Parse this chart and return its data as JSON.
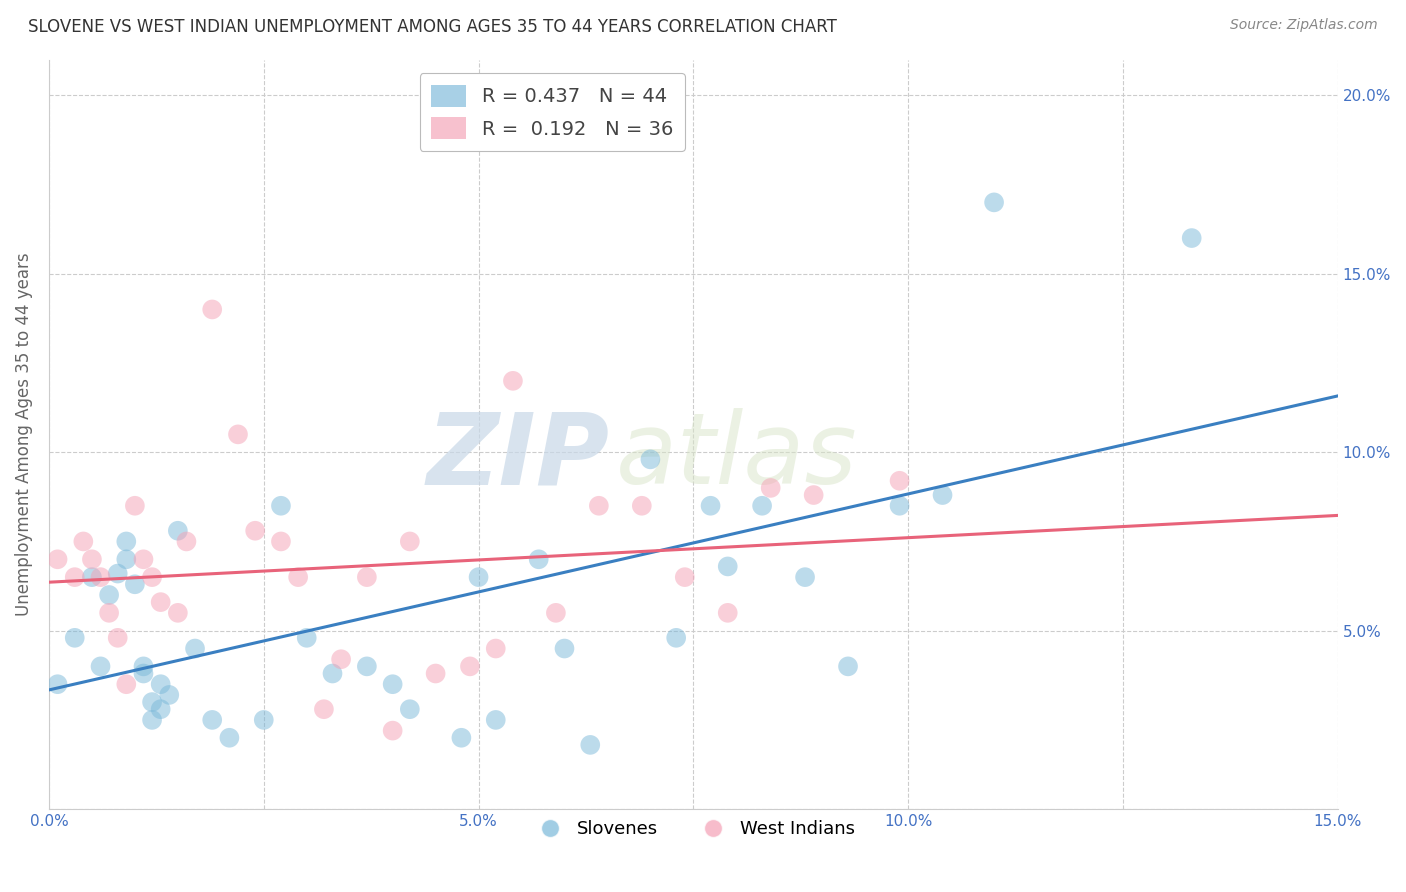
{
  "title": "SLOVENE VS WEST INDIAN UNEMPLOYMENT AMONG AGES 35 TO 44 YEARS CORRELATION CHART",
  "source": "Source: ZipAtlas.com",
  "ylabel": "Unemployment Among Ages 35 to 44 years",
  "xlim": [
    0.0,
    0.15
  ],
  "ylim": [
    0.0,
    0.21
  ],
  "xticks": [
    0.0,
    0.025,
    0.05,
    0.075,
    0.1,
    0.125,
    0.15
  ],
  "xtick_labels": [
    "0.0%",
    "",
    "5.0%",
    "",
    "10.0%",
    "",
    "15.0%"
  ],
  "yticks": [
    0.0,
    0.05,
    0.1,
    0.15,
    0.2
  ],
  "ytick_labels_right": [
    "",
    "5.0%",
    "10.0%",
    "15.0%",
    "20.0%"
  ],
  "slovene_color": "#7ab8d9",
  "west_indian_color": "#f4a0b5",
  "slovene_line_color": "#3a7fc1",
  "west_indian_line_color": "#e8637a",
  "R_slovene": 0.437,
  "N_slovene": 44,
  "R_west_indian": 0.192,
  "N_west_indian": 36,
  "background_color": "#ffffff",
  "grid_color": "#cccccc",
  "slovene_x": [
    0.001,
    0.003,
    0.005,
    0.006,
    0.007,
    0.008,
    0.009,
    0.009,
    0.01,
    0.011,
    0.011,
    0.012,
    0.012,
    0.013,
    0.013,
    0.014,
    0.015,
    0.017,
    0.019,
    0.021,
    0.025,
    0.027,
    0.03,
    0.033,
    0.037,
    0.04,
    0.042,
    0.048,
    0.05,
    0.052,
    0.057,
    0.06,
    0.063,
    0.07,
    0.073,
    0.077,
    0.079,
    0.083,
    0.088,
    0.093,
    0.099,
    0.104,
    0.11,
    0.133
  ],
  "slovene_y": [
    0.035,
    0.048,
    0.065,
    0.04,
    0.06,
    0.066,
    0.07,
    0.075,
    0.063,
    0.04,
    0.038,
    0.03,
    0.025,
    0.028,
    0.035,
    0.032,
    0.078,
    0.045,
    0.025,
    0.02,
    0.025,
    0.085,
    0.048,
    0.038,
    0.04,
    0.035,
    0.028,
    0.02,
    0.065,
    0.025,
    0.07,
    0.045,
    0.018,
    0.098,
    0.048,
    0.085,
    0.068,
    0.085,
    0.065,
    0.04,
    0.085,
    0.088,
    0.17,
    0.16
  ],
  "west_indian_x": [
    0.001,
    0.003,
    0.004,
    0.005,
    0.006,
    0.007,
    0.008,
    0.009,
    0.01,
    0.011,
    0.012,
    0.013,
    0.015,
    0.016,
    0.019,
    0.022,
    0.024,
    0.027,
    0.029,
    0.032,
    0.034,
    0.037,
    0.04,
    0.042,
    0.045,
    0.049,
    0.052,
    0.054,
    0.059,
    0.064,
    0.069,
    0.074,
    0.079,
    0.084,
    0.089,
    0.099
  ],
  "west_indian_y": [
    0.07,
    0.065,
    0.075,
    0.07,
    0.065,
    0.055,
    0.048,
    0.035,
    0.085,
    0.07,
    0.065,
    0.058,
    0.055,
    0.075,
    0.14,
    0.105,
    0.078,
    0.075,
    0.065,
    0.028,
    0.042,
    0.065,
    0.022,
    0.075,
    0.038,
    0.04,
    0.045,
    0.12,
    0.055,
    0.085,
    0.085,
    0.065,
    0.055,
    0.09,
    0.088,
    0.092
  ],
  "watermark_zip": "ZIP",
  "watermark_atlas": "atlas",
  "title_fontsize": 12,
  "axis_tick_fontsize": 11,
  "ylabel_fontsize": 12
}
